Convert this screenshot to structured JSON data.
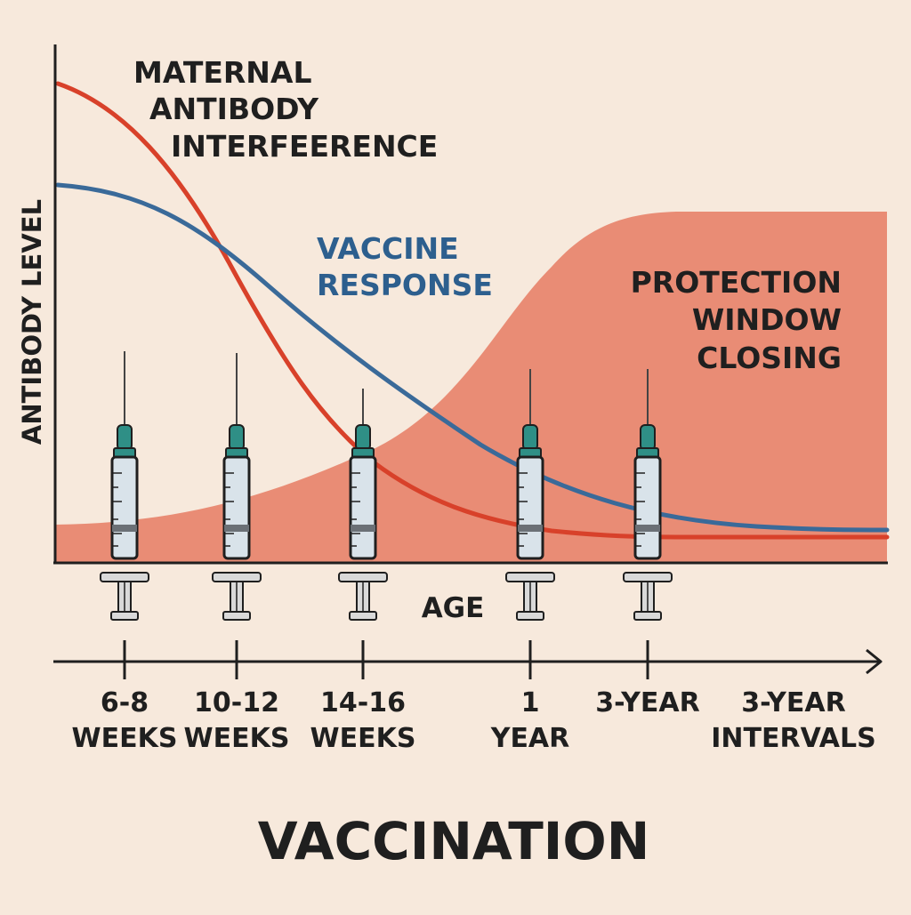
{
  "diagram": {
    "y_axis_label": "ANTIBODY LEVEL",
    "x_axis_label": "AGE",
    "bottom_title": "VACCINATION",
    "maternal_label": [
      "MATERNAL",
      "ANTIBODY",
      "INTERFEERENCE"
    ],
    "vaccine_label": [
      "VACCINE",
      "RESPONSE"
    ],
    "protection_label": [
      "PROTECTION",
      "WINDOW",
      "CLOSING"
    ],
    "timeline": [
      {
        "line1": "6-8",
        "line2": "WEEKS",
        "syringe": true
      },
      {
        "line1": "10-12",
        "line2": "WEEKS",
        "syringe": true
      },
      {
        "line1": "14-16",
        "line2": "WEEKS",
        "syringe": true
      },
      {
        "line1": "1",
        "line2": "YEAR",
        "syringe": true
      },
      {
        "line1": "3-YEAR",
        "line2": "",
        "syringe": true
      },
      {
        "line1": "3-YEAR",
        "line2": "INTERVALS",
        "syringe": false
      }
    ],
    "colors": {
      "background": "#f7e9dc",
      "maternal_curve": "#d8412a",
      "vaccine_curve": "#3a6a99",
      "protection_area": "#e98c75",
      "syringe_cap": "#2f8f86",
      "text": "#1f1f1f",
      "vaccine_text": "#2d5f8e"
    },
    "icons": [
      "syringe-icon",
      "arrow-right-icon"
    ]
  }
}
